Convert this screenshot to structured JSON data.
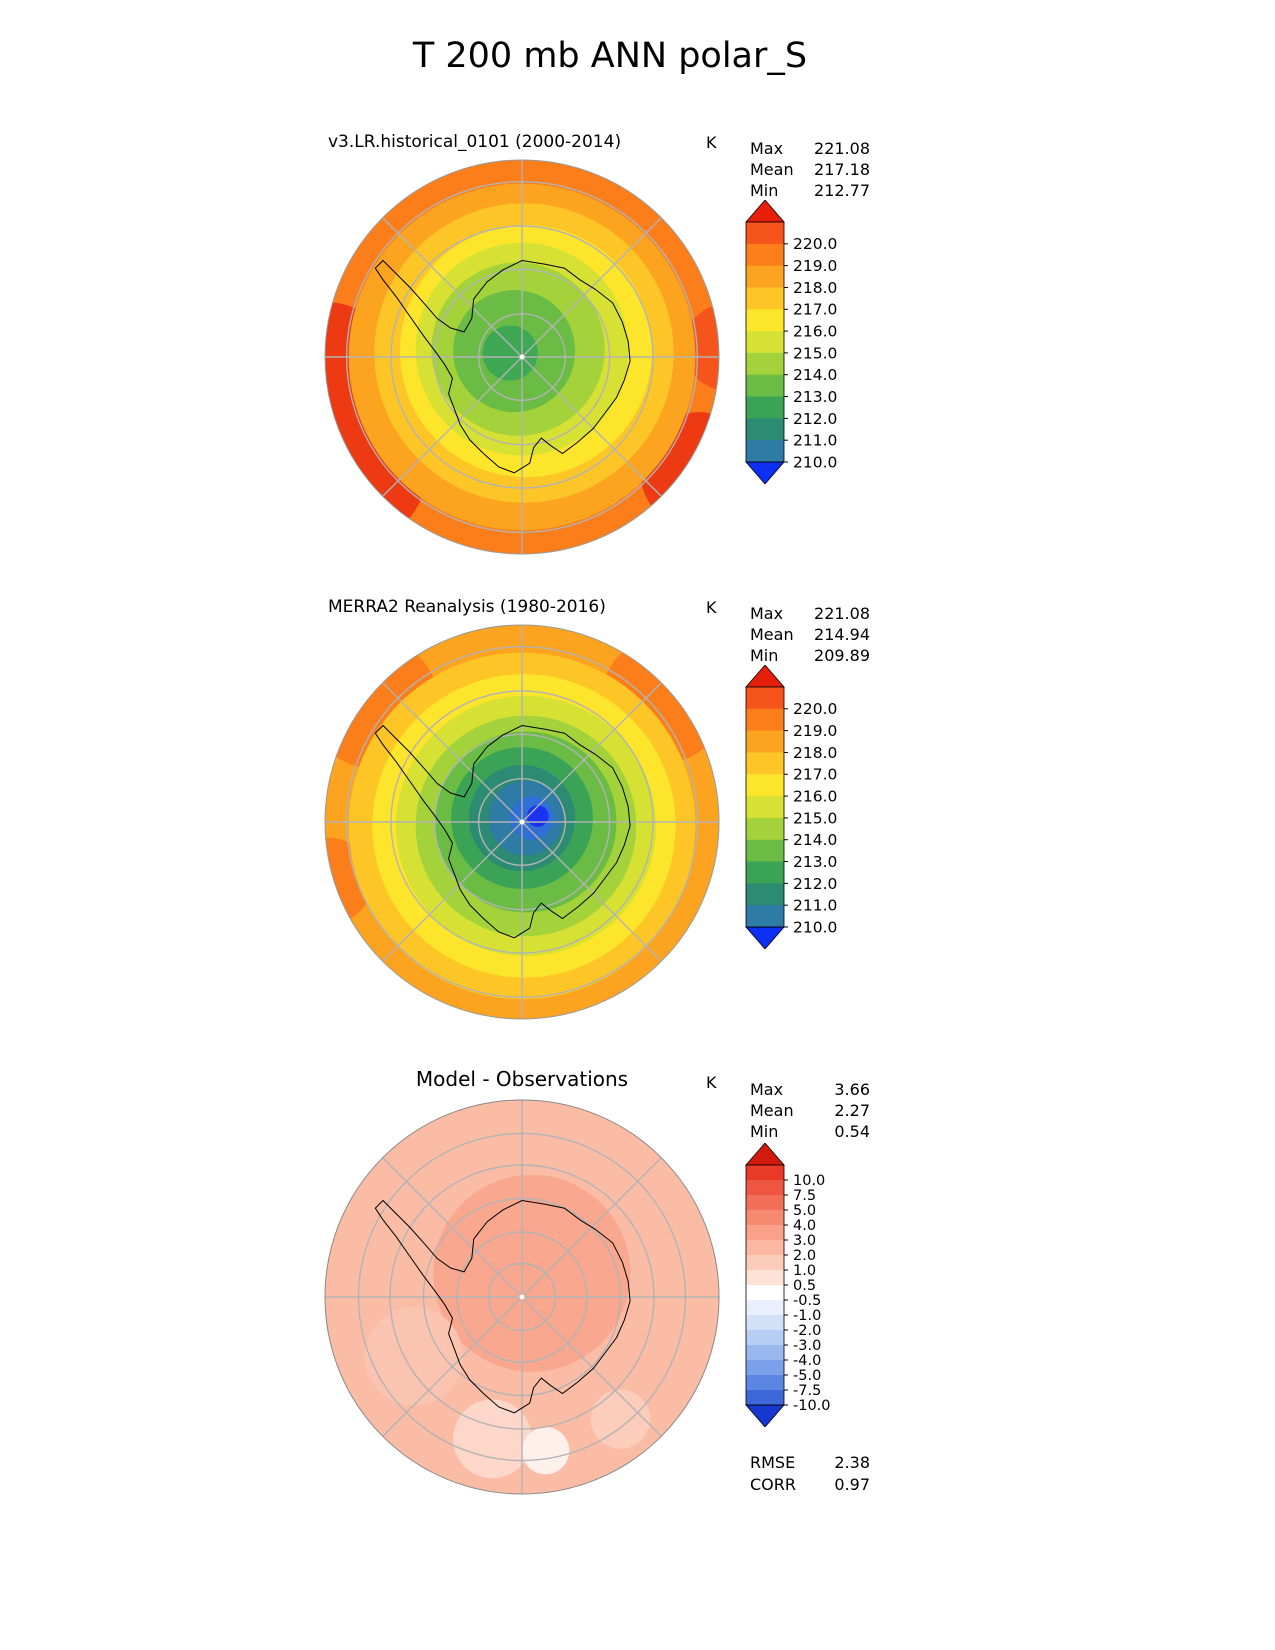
{
  "page": {
    "title": "T 200 mb ANN polar_S"
  },
  "chart_data": [
    {
      "type": "heatmap",
      "projection": "south-polar-stereographic",
      "title": "v3.LR.historical_0101 (2000-2014)",
      "units": "K",
      "stats": [
        {
          "label": "Max",
          "value": "221.08"
        },
        {
          "label": "Mean",
          "value": "217.18"
        },
        {
          "label": "Min",
          "value": "212.77"
        }
      ],
      "colorbar": {
        "levels": [
          "220.0",
          "219.0",
          "218.0",
          "217.0",
          "216.0",
          "215.0",
          "214.0",
          "213.0",
          "212.0",
          "211.0",
          "210.0"
        ],
        "band_colors": [
          "#f5551a",
          "#fb7e1b",
          "#fca41f",
          "#fdc526",
          "#fde52c",
          "#d6e134",
          "#a4d23b",
          "#6bbc45",
          "#3ba355",
          "#2c8b72",
          "#2e7ba6"
        ],
        "arrow_top": "#e61e0a",
        "arrow_bottom": "#0d2ff2",
        "label_size": 15.5
      },
      "map": {
        "rings": [
          {
            "cx": 0,
            "cy": 0,
            "r": 1.02,
            "color": "#fb7e1b"
          },
          {
            "cx": -1.0,
            "cy": 0.1,
            "r": 0.38,
            "color": "#ee3a12"
          },
          {
            "cx": -0.82,
            "cy": 0.6,
            "r": 0.33,
            "color": "#ee3a12"
          },
          {
            "cx": 0.9,
            "cy": 0.58,
            "r": 0.3,
            "color": "#ee3a12"
          },
          {
            "cx": 1.04,
            "cy": -0.05,
            "r": 0.22,
            "color": "#f5551a"
          },
          {
            "cx": 0,
            "cy": 0,
            "r": 0.88,
            "color": "#fca41f"
          },
          {
            "cx": 0.01,
            "cy": -0.02,
            "r": 0.76,
            "color": "#fdc526"
          },
          {
            "cx": 0.02,
            "cy": -0.03,
            "r": 0.64,
            "color": "#fde52c"
          },
          {
            "cx": 0.0,
            "cy": -0.04,
            "r": 0.54,
            "color": "#d6e134"
          },
          {
            "cx": -0.02,
            "cy": -0.04,
            "r": 0.44,
            "color": "#a4d23b"
          },
          {
            "cx": -0.04,
            "cy": -0.03,
            "r": 0.31,
            "color": "#6bbc45"
          },
          {
            "cx": -0.06,
            "cy": -0.02,
            "r": 0.14,
            "color": "#3fa854"
          }
        ],
        "gridlines": {
          "circles": [
            0.22,
            0.445,
            0.665,
            0.89
          ],
          "spokes": 8,
          "color": "#b3b3b3"
        },
        "pole_dot": "#ffffff",
        "border": "#999999"
      }
    },
    {
      "type": "heatmap",
      "projection": "south-polar-stereographic",
      "title": "MERRA2 Reanalysis (1980-2016)",
      "units": "K",
      "stats": [
        {
          "label": "Max",
          "value": "221.08"
        },
        {
          "label": "Mean",
          "value": "214.94"
        },
        {
          "label": "Min",
          "value": "209.89"
        }
      ],
      "colorbar": {
        "levels": [
          "220.0",
          "219.0",
          "218.0",
          "217.0",
          "216.0",
          "215.0",
          "214.0",
          "213.0",
          "212.0",
          "211.0",
          "210.0"
        ],
        "band_colors": [
          "#f5551a",
          "#fb7e1b",
          "#fca41f",
          "#fdc526",
          "#fde52c",
          "#d6e134",
          "#a4d23b",
          "#6bbc45",
          "#3ba355",
          "#2c8b72",
          "#2e7ba6"
        ],
        "arrow_top": "#e61e0a",
        "arrow_bottom": "#0d2ff2",
        "label_size": 15.5
      },
      "map": {
        "rings": [
          {
            "cx": 0,
            "cy": 0,
            "r": 1.02,
            "color": "#fca41f"
          },
          {
            "cx": -0.75,
            "cy": -0.6,
            "r": 0.33,
            "color": "#fb7e1b"
          },
          {
            "cx": 0.72,
            "cy": -0.62,
            "r": 0.32,
            "color": "#fb7e1b"
          },
          {
            "cx": -0.98,
            "cy": 0.3,
            "r": 0.22,
            "color": "#fb7e1b"
          },
          {
            "cx": 0,
            "cy": 0.02,
            "r": 0.88,
            "color": "#fdc526"
          },
          {
            "cx": 0.01,
            "cy": 0.02,
            "r": 0.77,
            "color": "#fde52c"
          },
          {
            "cx": 0.02,
            "cy": 0.02,
            "r": 0.66,
            "color": "#d6e134"
          },
          {
            "cx": 0.02,
            "cy": 0.02,
            "r": 0.56,
            "color": "#a4d23b"
          },
          {
            "cx": 0.02,
            "cy": 0.0,
            "r": 0.46,
            "color": "#6bbc45"
          },
          {
            "cx": 0.0,
            "cy": -0.02,
            "r": 0.36,
            "color": "#3ba355"
          },
          {
            "cx": 0.0,
            "cy": -0.02,
            "r": 0.27,
            "color": "#2c8b72"
          },
          {
            "cx": 0.02,
            "cy": -0.02,
            "r": 0.19,
            "color": "#2e7ba6"
          },
          {
            "cx": 0.05,
            "cy": -0.02,
            "r": 0.11,
            "color": "#2f6fd6"
          },
          {
            "cx": 0.08,
            "cy": -0.03,
            "r": 0.055,
            "color": "#1b33f0"
          }
        ],
        "gridlines": {
          "circles": [
            0.22,
            0.445,
            0.665,
            0.89
          ],
          "spokes": 8,
          "color": "#b3b3b3"
        },
        "pole_dot": "#ffffff",
        "border": "#999999"
      }
    },
    {
      "type": "heatmap",
      "projection": "south-polar-stereographic",
      "title": "Model - Observations",
      "units": "K",
      "stats": [
        {
          "label": "Max",
          "value": "3.66"
        },
        {
          "label": "Mean",
          "value": "2.27"
        },
        {
          "label": "Min",
          "value": "0.54"
        }
      ],
      "metrics": [
        {
          "label": "RMSE",
          "value": "2.38"
        },
        {
          "label": "CORR",
          "value": "0.97"
        }
      ],
      "colorbar": {
        "levels": [
          "10.0",
          "7.5",
          "5.0",
          "4.0",
          "3.0",
          "2.0",
          "1.0",
          "0.5",
          "-0.5",
          "-1.0",
          "-2.0",
          "-3.0",
          "-4.0",
          "-5.0",
          "-7.5",
          "-10.0"
        ],
        "band_colors": [
          "#e93a28",
          "#ee5642",
          "#f37058",
          "#f68a70",
          "#f9a189",
          "#fbb7a1",
          "#fcccba",
          "#fee2d6",
          "#ffffff",
          "#e9effb",
          "#d3e1f8",
          "#b6cdf4",
          "#98b8ef",
          "#7aa1ea",
          "#5b86e3",
          "#3d68da"
        ],
        "arrow_top": "#d31a0c",
        "arrow_bottom": "#1737cf",
        "label_size": 14.5
      },
      "map": {
        "rings": [
          {
            "cx": 0,
            "cy": 0,
            "r": 1.02,
            "color": "#fbbca6"
          },
          {
            "cx": 0.05,
            "cy": -0.12,
            "r": 0.5,
            "color": "#f9a78e"
          },
          {
            "cx": -0.55,
            "cy": 0.3,
            "r": 0.25,
            "color": "#fbc4b1"
          },
          {
            "cx": -0.15,
            "cy": 0.72,
            "r": 0.2,
            "color": "#fdd8ca"
          },
          {
            "cx": 0.12,
            "cy": 0.78,
            "r": 0.12,
            "color": "#fef0ea"
          },
          {
            "cx": 0.5,
            "cy": 0.62,
            "r": 0.15,
            "color": "#fccdbb"
          }
        ],
        "gridlines": {
          "circles": [
            0.17,
            0.33,
            0.5,
            0.67,
            0.83
          ],
          "spokes": 8,
          "color": "#b3b3b3"
        },
        "pole_dot": "#ffffff",
        "border": "#888888"
      }
    }
  ]
}
